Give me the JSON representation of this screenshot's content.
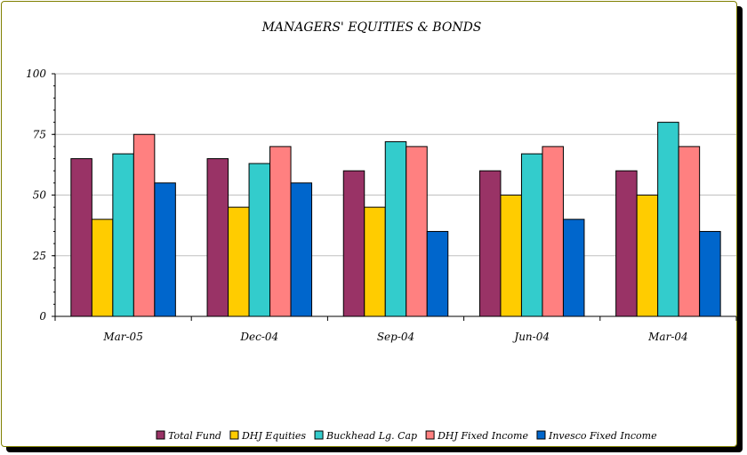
{
  "chart_data": {
    "type": "bar",
    "title": "MANAGERS' EQUITIES & BONDS",
    "xlabel": "",
    "ylabel": "",
    "ylim": [
      0,
      100
    ],
    "yticks": [
      "0",
      "25",
      "50",
      "75",
      "100"
    ],
    "grid": true,
    "legend_position": "bottom",
    "categories": [
      "Mar-05",
      "Dec-04",
      "Sep-04",
      "Jun-04",
      "Mar-04"
    ],
    "series": [
      {
        "name": "Total Fund",
        "color": "#993366",
        "values": [
          65,
          65,
          60,
          60,
          60
        ]
      },
      {
        "name": "DHJ Equities",
        "color": "#FFCC00",
        "values": [
          40,
          45,
          45,
          50,
          50
        ]
      },
      {
        "name": "Buckhead Lg. Cap",
        "color": "#33CCCC",
        "values": [
          67,
          63,
          72,
          67,
          80
        ]
      },
      {
        "name": "DHJ Fixed Income",
        "color": "#FF8080",
        "values": [
          75,
          70,
          70,
          70,
          70
        ]
      },
      {
        "name": "Invesco Fixed Income",
        "color": "#0066CC",
        "values": [
          55,
          55,
          35,
          40,
          35
        ]
      }
    ]
  }
}
